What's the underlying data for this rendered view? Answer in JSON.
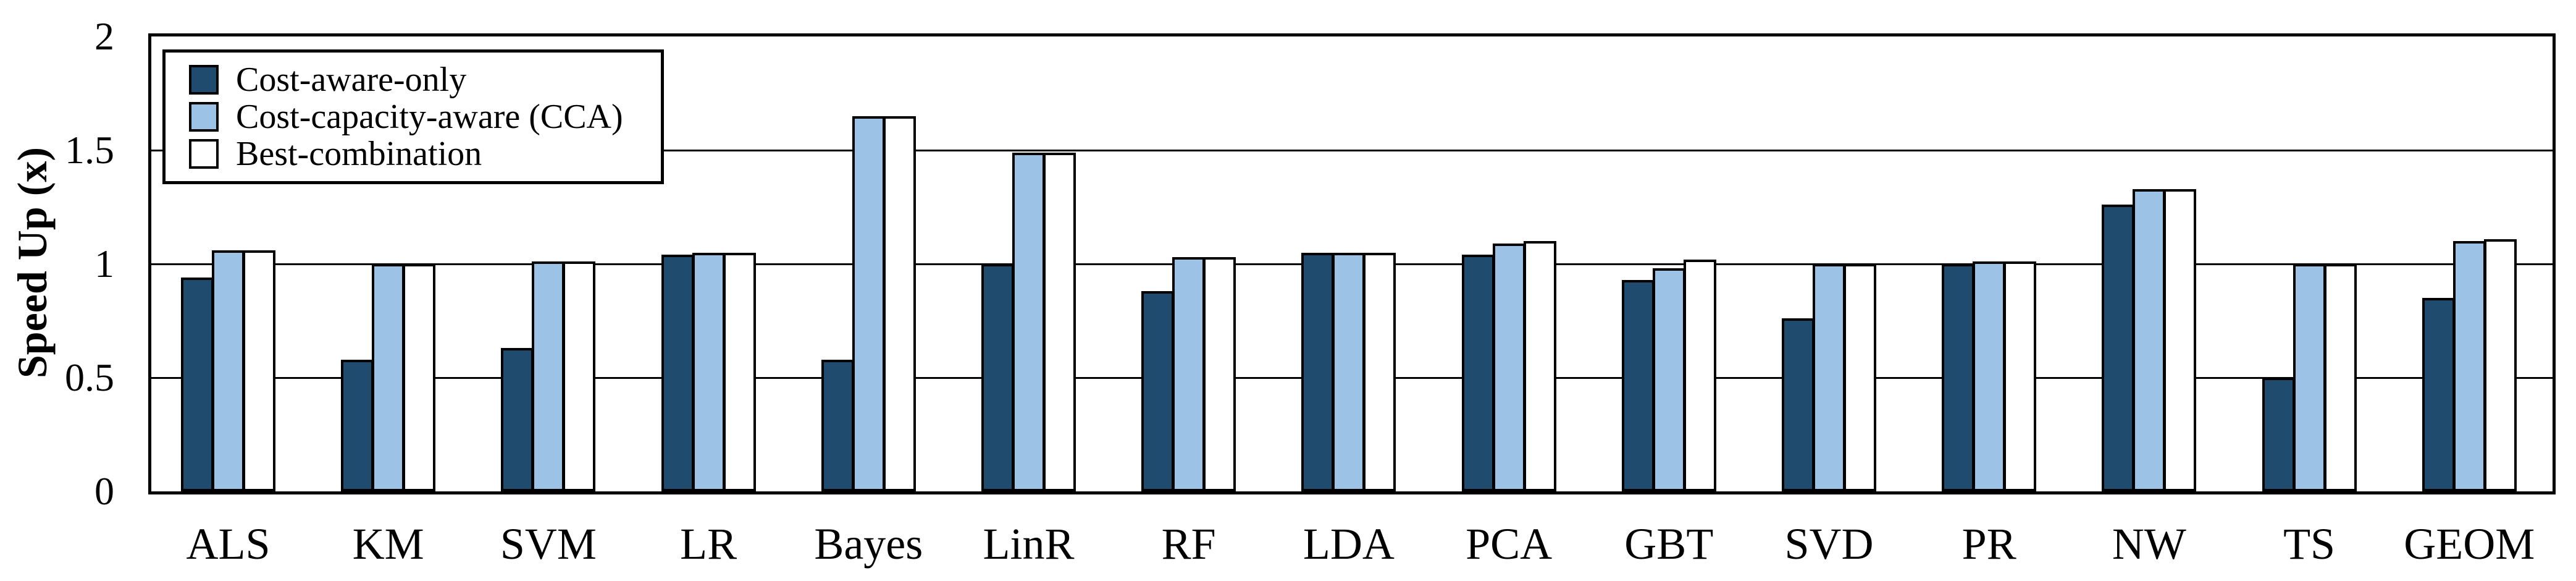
{
  "chart_data": {
    "type": "bar",
    "title": "",
    "xlabel": "",
    "ylabel": "Speed Up (x)",
    "ylim": [
      0,
      2
    ],
    "yticks": [
      0,
      0.5,
      1,
      1.5,
      2
    ],
    "ytick_labels": [
      "0",
      "0.5",
      "1",
      "1.5",
      "2"
    ],
    "grid": "horizontal",
    "legend_position": "top-left-inside",
    "categories": [
      "ALS",
      "KM",
      "SVM",
      "LR",
      "Bayes",
      "LinR",
      "RF",
      "LDA",
      "PCA",
      "GBT",
      "SVD",
      "PR",
      "NW",
      "TS",
      "GEOM"
    ],
    "series": [
      {
        "name": "Cost-aware-only",
        "color": "#1F4B6E",
        "values": [
          0.94,
          0.58,
          0.63,
          1.04,
          0.58,
          1.0,
          0.88,
          1.05,
          1.04,
          0.93,
          0.76,
          1.0,
          1.26,
          0.5,
          0.85
        ]
      },
      {
        "name": "Cost-capacity-aware (CCA)",
        "color": "#9CC3E6",
        "values": [
          1.06,
          1.0,
          1.01,
          1.05,
          1.65,
          1.49,
          1.03,
          1.05,
          1.09,
          0.98,
          1.0,
          1.01,
          1.33,
          1.0,
          1.1
        ]
      },
      {
        "name": "Best-combination",
        "color": "#FFFFFF",
        "values": [
          1.06,
          1.0,
          1.01,
          1.05,
          1.65,
          1.49,
          1.03,
          1.05,
          1.1,
          1.02,
          1.0,
          1.01,
          1.33,
          1.0,
          1.11
        ]
      }
    ]
  },
  "colors": {
    "background": "#FFFFFF",
    "axis": "#000000",
    "bar_border": "#000000",
    "gridline": "#000000"
  }
}
